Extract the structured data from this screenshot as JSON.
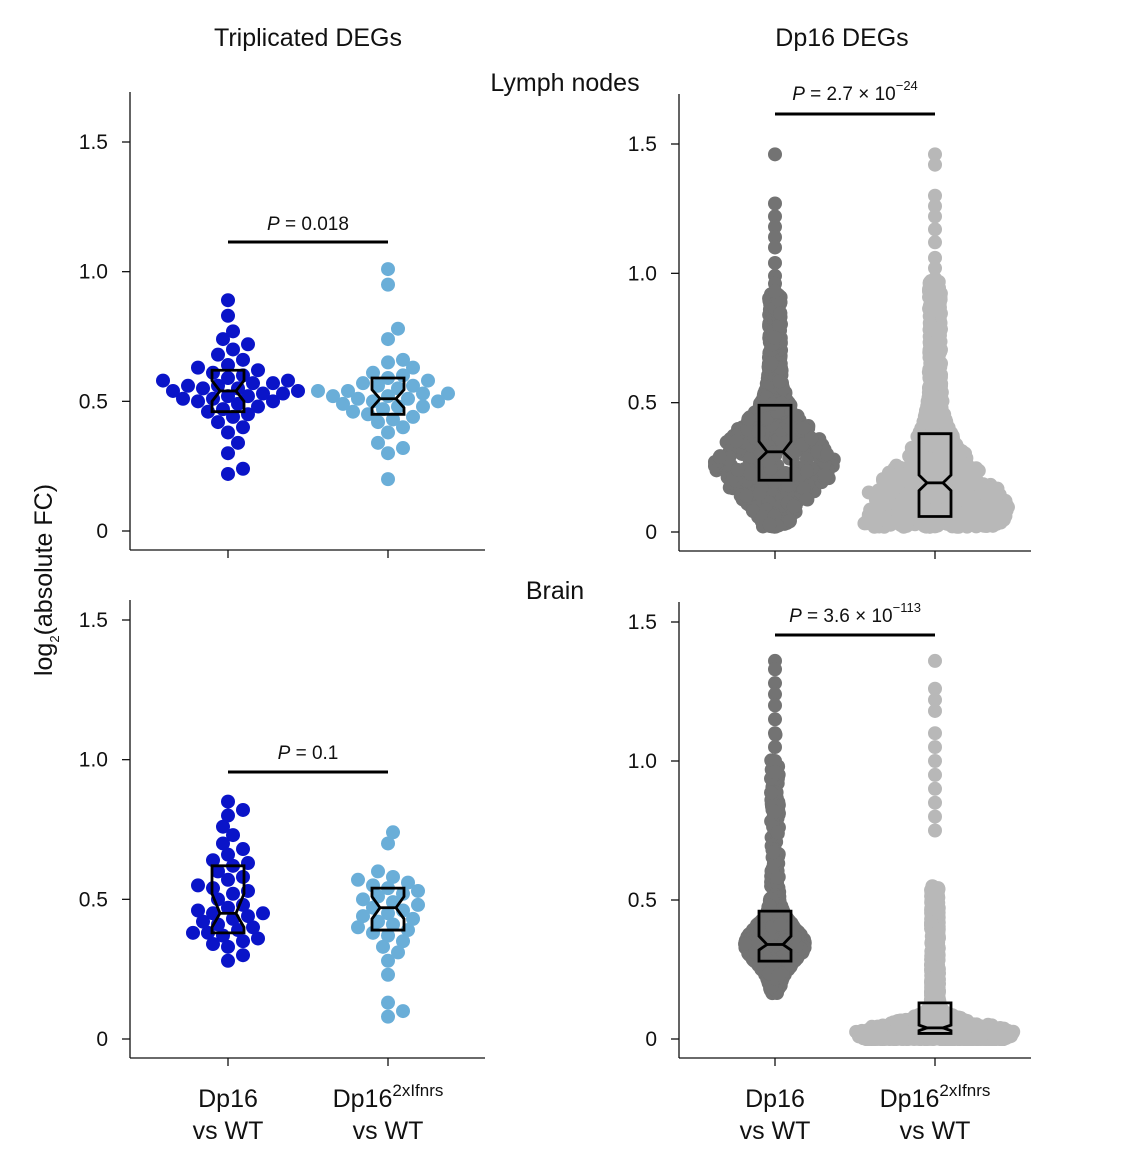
{
  "figure": {
    "column_titles": [
      "Triplicated DEGs",
      "Dp16 DEGs"
    ],
    "row_titles": [
      "Lymph nodes",
      "Brain"
    ],
    "y_label": "log2(absolute FC)",
    "y_label_main": "log",
    "y_label_sub": "2",
    "y_label_rest": "(absolute FC)",
    "x_categories": [
      {
        "line1": "Dp16",
        "sup": "",
        "line2": "vs WT"
      },
      {
        "line1": "Dp16",
        "sup": "2xIfnrs",
        "line2": "vs WT"
      }
    ],
    "y_ticks": [
      "0",
      "0.5",
      "1.0",
      "1.5"
    ]
  },
  "colors": {
    "dp16_triplicated": "#0a14c8",
    "dp16_2xifnrs_triplicated": "#6aaed8",
    "dp16_dp16degs": "#737373",
    "dp16_2xifnrs_dp16degs": "#b8b8b8"
  },
  "chart_data": [
    {
      "type": "scatter",
      "panel": "lymph-triplicated",
      "categories": [
        "Dp16 vs WT",
        "Dp16 2xIfnrs vs WT"
      ],
      "ylim": [
        0,
        1.5
      ],
      "p_value": {
        "italic": "P",
        "text": " = 0.018",
        "mantissa": "",
        "exponent": ""
      },
      "box": [
        {
          "q1": 0.46,
          "median": 0.54,
          "q3": 0.62,
          "notch_low": 0.5,
          "notch_high": 0.58
        },
        {
          "q1": 0.45,
          "median": 0.51,
          "q3": 0.59,
          "notch_low": 0.475,
          "notch_high": 0.545
        }
      ],
      "series": [
        {
          "values": [
            0.22,
            0.24,
            0.3,
            0.34,
            0.38,
            0.4,
            0.42,
            0.44,
            0.45,
            0.46,
            0.47,
            0.48,
            0.49,
            0.5,
            0.5,
            0.51,
            0.51,
            0.52,
            0.52,
            0.53,
            0.53,
            0.54,
            0.54,
            0.55,
            0.55,
            0.56,
            0.56,
            0.57,
            0.57,
            0.58,
            0.58,
            0.59,
            0.6,
            0.61,
            0.62,
            0.63,
            0.64,
            0.66,
            0.68,
            0.7,
            0.72,
            0.74,
            0.77,
            0.83,
            0.89
          ]
        },
        {
          "values": [
            0.2,
            0.3,
            0.32,
            0.34,
            0.38,
            0.4,
            0.42,
            0.43,
            0.44,
            0.45,
            0.46,
            0.47,
            0.48,
            0.48,
            0.49,
            0.5,
            0.5,
            0.51,
            0.51,
            0.52,
            0.52,
            0.53,
            0.53,
            0.54,
            0.54,
            0.55,
            0.56,
            0.56,
            0.57,
            0.58,
            0.59,
            0.6,
            0.61,
            0.63,
            0.65,
            0.66,
            0.74,
            0.78,
            0.95,
            1.01
          ]
        }
      ]
    },
    {
      "type": "scatter",
      "panel": "lymph-dp16degs",
      "categories": [
        "Dp16 vs WT",
        "Dp16 2xIfnrs vs WT"
      ],
      "ylim": [
        0,
        1.5
      ],
      "p_value": {
        "italic": "P",
        "text": " = 2.7 × 10",
        "mantissa": "2.7",
        "exponent": "−24"
      },
      "box": [
        {
          "q1": 0.2,
          "median": 0.31,
          "q3": 0.49,
          "notch_low": 0.28,
          "notch_high": 0.35
        },
        {
          "q1": 0.06,
          "median": 0.19,
          "q3": 0.38,
          "notch_low": 0.16,
          "notch_high": 0.22
        }
      ],
      "series": [
        {
          "distribution": "dense",
          "n_points": 900,
          "min": 0.0,
          "median": 0.31,
          "max": 1.46,
          "outliers": [
            1.46,
            1.27,
            1.22,
            1.18,
            1.14,
            1.1,
            1.04,
            0.99,
            0.96,
            0.93
          ]
        },
        {
          "distribution": "dense",
          "n_points": 900,
          "min": 0.0,
          "median": 0.19,
          "max": 1.46,
          "outliers": [
            1.46,
            1.42,
            1.3,
            1.26,
            1.22,
            1.17,
            1.12,
            1.06,
            1.02,
            0.98
          ]
        }
      ]
    },
    {
      "type": "scatter",
      "panel": "brain-triplicated",
      "categories": [
        "Dp16 vs WT",
        "Dp16 2xIfnrs vs WT"
      ],
      "ylim": [
        0,
        1.5
      ],
      "p_value": {
        "italic": "P",
        "text": " = 0.1",
        "mantissa": "",
        "exponent": ""
      },
      "box": [
        {
          "q1": 0.38,
          "median": 0.45,
          "q3": 0.62,
          "notch_low": 0.4,
          "notch_high": 0.52
        },
        {
          "q1": 0.39,
          "median": 0.47,
          "q3": 0.54,
          "notch_low": 0.43,
          "notch_high": 0.51
        }
      ],
      "series": [
        {
          "values": [
            0.28,
            0.3,
            0.33,
            0.34,
            0.35,
            0.36,
            0.37,
            0.38,
            0.38,
            0.39,
            0.4,
            0.41,
            0.42,
            0.43,
            0.44,
            0.45,
            0.45,
            0.46,
            0.47,
            0.48,
            0.5,
            0.52,
            0.53,
            0.54,
            0.55,
            0.57,
            0.58,
            0.6,
            0.62,
            0.63,
            0.64,
            0.66,
            0.68,
            0.7,
            0.73,
            0.76,
            0.8,
            0.82,
            0.85
          ]
        },
        {
          "values": [
            0.08,
            0.1,
            0.13,
            0.23,
            0.28,
            0.31,
            0.33,
            0.35,
            0.37,
            0.38,
            0.39,
            0.4,
            0.41,
            0.42,
            0.43,
            0.44,
            0.45,
            0.46,
            0.47,
            0.48,
            0.49,
            0.5,
            0.51,
            0.52,
            0.53,
            0.54,
            0.55,
            0.56,
            0.57,
            0.58,
            0.6,
            0.7,
            0.74
          ]
        }
      ]
    },
    {
      "type": "scatter",
      "panel": "brain-dp16degs",
      "categories": [
        "Dp16 vs WT",
        "Dp16 2xIfnrs vs WT"
      ],
      "ylim": [
        0,
        1.5
      ],
      "p_value": {
        "italic": "P",
        "text": " = 3.6 × 10",
        "mantissa": "3.6",
        "exponent": "−113"
      },
      "box": [
        {
          "q1": 0.28,
          "median": 0.34,
          "q3": 0.46,
          "notch_low": 0.32,
          "notch_high": 0.37
        },
        {
          "q1": 0.02,
          "median": 0.04,
          "q3": 0.13,
          "notch_low": 0.03,
          "notch_high": 0.05
        }
      ],
      "series": [
        {
          "distribution": "dense",
          "n_points": 1400,
          "min": 0.0,
          "median": 0.34,
          "max": 1.36,
          "outliers": [
            1.36,
            1.33,
            1.28,
            1.24,
            1.2,
            1.15,
            1.1,
            1.05,
            1.0,
            0.96
          ]
        },
        {
          "distribution": "dense",
          "n_points": 1400,
          "min": 0.0,
          "median": 0.04,
          "max": 1.36,
          "outliers": [
            1.36,
            1.26,
            1.22,
            1.18,
            1.1,
            1.05,
            1.0,
            0.95,
            0.9,
            0.85,
            0.8,
            0.75
          ]
        }
      ]
    }
  ]
}
